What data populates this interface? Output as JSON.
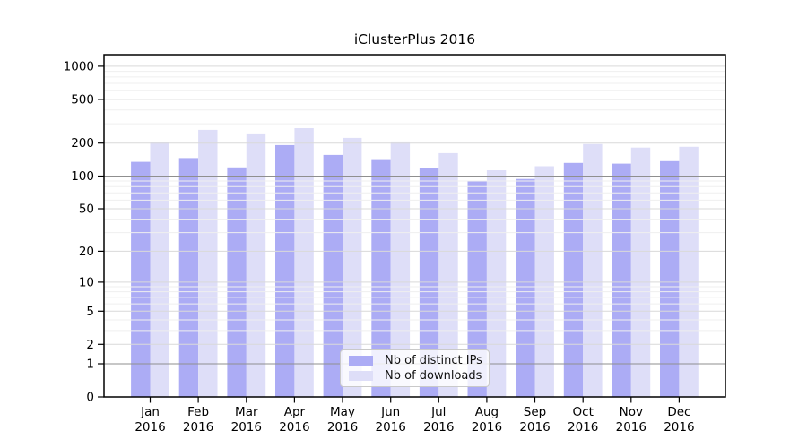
{
  "chart_data": {
    "type": "bar",
    "title": "iClusterPlus 2016",
    "categories": [
      "Jan",
      "Feb",
      "Mar",
      "Apr",
      "May",
      "Jun",
      "Jul",
      "Aug",
      "Sep",
      "Oct",
      "Nov",
      "Dec"
    ],
    "year_label": "2016",
    "series": [
      {
        "name": "Nb of distinct IPs",
        "color": "#acacf5",
        "values": [
          135,
          146,
          120,
          192,
          156,
          140,
          118,
          90,
          94,
          132,
          130,
          137
        ]
      },
      {
        "name": "Nb of downloads",
        "color": "#dedef8",
        "values": [
          203,
          264,
          245,
          274,
          223,
          207,
          162,
          113,
          123,
          196,
          182,
          185
        ]
      }
    ],
    "xlabel": "",
    "ylabel": "",
    "y_scale": "log1p",
    "ylim": [
      0,
      1280
    ],
    "y_ticks": [
      0,
      1,
      2,
      5,
      10,
      20,
      50,
      100,
      200,
      500,
      1000
    ],
    "y_minor_ticks": [
      3,
      4,
      6,
      7,
      8,
      9,
      30,
      40,
      60,
      70,
      80,
      90,
      300,
      400,
      600,
      700,
      800,
      900
    ],
    "emphasized_gridlines": [
      1,
      100
    ],
    "grid": "on",
    "legend_position": "inside-bottom-center",
    "colors": {
      "axis": "#000000",
      "grid_major": "#d9d9d9",
      "grid_minor": "#efefef",
      "grid_emphasis": "#8f8f8f",
      "background": "#ffffff",
      "text": "#000000"
    }
  }
}
